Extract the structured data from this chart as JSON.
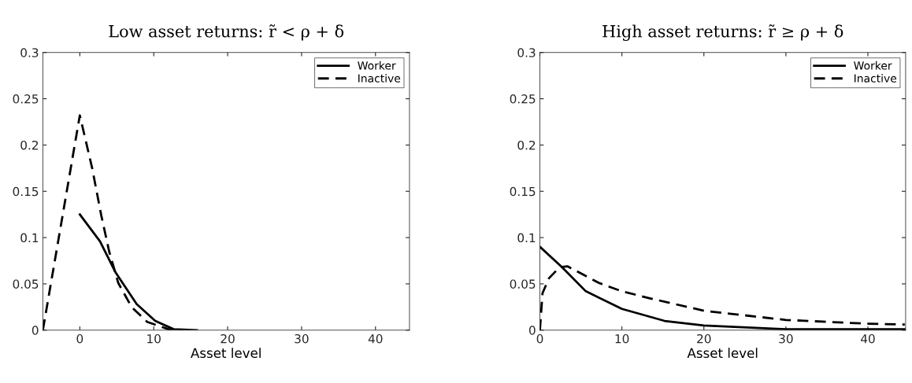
{
  "chart_data": [
    {
      "type": "line",
      "title": "Low asset returns: r̃ < ρ + δ",
      "xlabel": "Asset level",
      "xlim": [
        -5,
        44.6
      ],
      "xticks": [
        0,
        10,
        20,
        30,
        40
      ],
      "ylim": [
        0,
        0.3
      ],
      "yticks": [
        0,
        0.05,
        0.1,
        0.15,
        0.2,
        0.25,
        0.3
      ],
      "grid": false,
      "legend": "top right",
      "series": [
        {
          "name": "Worker",
          "color": "#000000",
          "line_style": "solid",
          "x": [
            0,
            2.73,
            4.86,
            7.7,
            10.2,
            12.7,
            15.85
          ],
          "values": [
            0.125,
            0.096,
            0.062,
            0.028,
            0.01,
            0.001,
            0
          ]
        },
        {
          "name": "Inactive",
          "color": "#000000",
          "line_style": "dashed",
          "x": [
            -5,
            0,
            1.67,
            2.9,
            3.97,
            5.2,
            7.0,
            9.1,
            12,
            12.8
          ],
          "values": [
            0,
            0.232,
            0.175,
            0.124,
            0.085,
            0.051,
            0.025,
            0.009,
            0.001,
            0
          ]
        }
      ]
    },
    {
      "type": "line",
      "title": "High asset returns: r̃ ≥ ρ + δ",
      "xlabel": "Asset level",
      "xlim": [
        0,
        44.6
      ],
      "xticks": [
        0,
        10,
        20,
        30,
        40
      ],
      "ylim": [
        0,
        0.3
      ],
      "yticks": [
        0,
        0.05,
        0.1,
        0.15,
        0.2,
        0.25,
        0.3
      ],
      "grid": false,
      "legend": "top right",
      "series": [
        {
          "name": "Worker",
          "color": "#000000",
          "line_style": "solid",
          "x": [
            0,
            2.7,
            5.6,
            10,
            15.2,
            20,
            30,
            44.5
          ],
          "values": [
            0.09,
            0.068,
            0.042,
            0.023,
            0.01,
            0.005,
            0.001,
            0.001
          ]
        },
        {
          "name": "Inactive",
          "color": "#000000",
          "line_style": "dashed",
          "x": [
            0,
            0.32,
            1.1,
            2.4,
            3.35,
            7.2,
            10,
            13.6,
            20,
            30,
            40,
            44.5
          ],
          "values": [
            0,
            0.04,
            0.056,
            0.068,
            0.069,
            0.051,
            0.042,
            0.034,
            0.021,
            0.011,
            0.007,
            0.006
          ]
        }
      ]
    }
  ]
}
